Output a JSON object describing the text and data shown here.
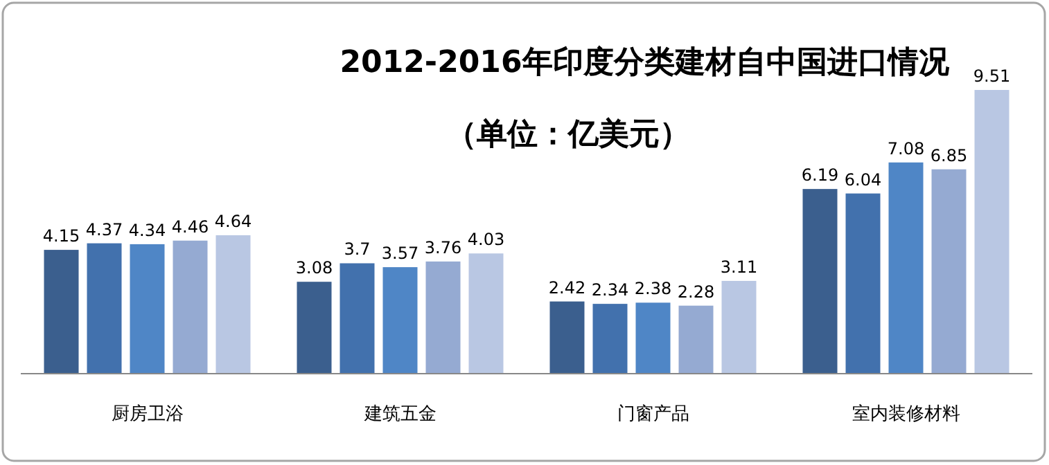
{
  "chart_data": {
    "type": "bar",
    "title": "2012-2016年印度分类建材自中国进口情况",
    "subtitle": "（单位：亿美元）",
    "categories": [
      "厨房卫浴",
      "建筑五金",
      "门窗产品",
      "室内装修材料"
    ],
    "series": [
      {
        "color": "#3b5f8e",
        "values": [
          4.15,
          3.08,
          2.42,
          6.19
        ]
      },
      {
        "color": "#4271ad",
        "values": [
          4.37,
          3.7,
          2.34,
          6.04
        ]
      },
      {
        "color": "#4f86c6",
        "values": [
          4.34,
          3.57,
          2.38,
          7.08
        ]
      },
      {
        "color": "#95aad2",
        "values": [
          4.46,
          3.76,
          2.28,
          6.85
        ]
      },
      {
        "color": "#b9c7e3",
        "values": [
          4.64,
          4.03,
          3.11,
          9.51
        ]
      }
    ],
    "data_labels": true
  }
}
